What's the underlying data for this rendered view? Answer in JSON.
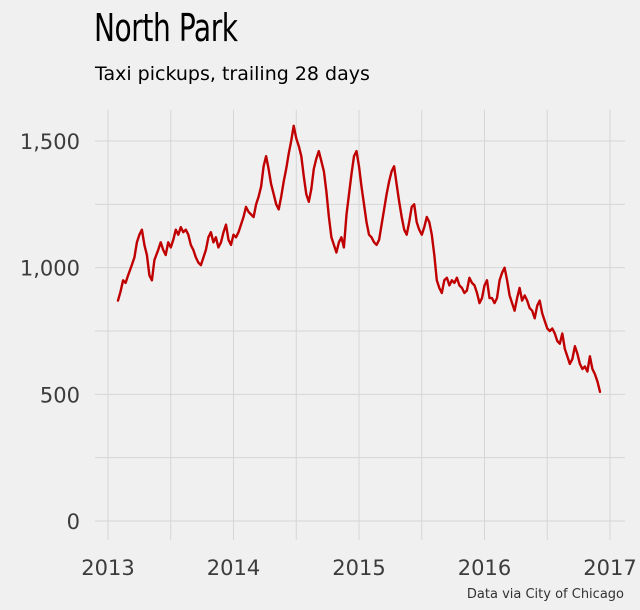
{
  "header": {
    "title": "North Park",
    "subtitle": "Taxi pickups, trailing 28 days"
  },
  "footer": {
    "source": "Data via City of Chicago"
  },
  "colors": {
    "background": "#f0f0f0",
    "grid": "#d6d6d6",
    "line": "#c00000"
  },
  "chart_data": {
    "type": "line",
    "title": "North Park",
    "subtitle": "Taxi pickups, trailing 28 days",
    "xlabel": "",
    "ylabel": "",
    "xlim": [
      2013.0,
      2017.0
    ],
    "ylim": [
      0,
      1600
    ],
    "x_ticks": [
      2013,
      2014,
      2015,
      2016,
      2017
    ],
    "x_tick_labels": [
      "2013",
      "2014",
      "2015",
      "2016",
      "2017"
    ],
    "y_ticks": [
      0,
      500,
      1000,
      1500
    ],
    "y_tick_labels": [
      "0",
      "500",
      "1,000",
      "1,500"
    ],
    "grid": true,
    "legend": "none",
    "series": [
      {
        "x": [
          2013.08,
          2013.1,
          2013.12,
          2013.14,
          2013.16,
          2013.19,
          2013.21,
          2013.23,
          2013.25,
          2013.27,
          2013.29,
          2013.31,
          2013.33,
          2013.35,
          2013.37,
          2013.4,
          2013.42,
          2013.44,
          2013.46,
          2013.48,
          2013.5,
          2013.52,
          2013.54,
          2013.56,
          2013.58,
          2013.6,
          2013.62,
          2013.64,
          2013.66,
          2013.68,
          2013.7,
          2013.72,
          2013.74,
          2013.76,
          2013.78,
          2013.8,
          2013.82,
          2013.84,
          2013.86,
          2013.88,
          2013.9,
          2013.92,
          2013.94,
          2013.96,
          2013.98,
          2014.0,
          2014.02,
          2014.04,
          2014.06,
          2014.08,
          2014.1,
          2014.12,
          2014.14,
          2014.16,
          2014.18,
          2014.2,
          2014.22,
          2014.24,
          2014.26,
          2014.28,
          2014.3,
          2014.32,
          2014.34,
          2014.36,
          2014.38,
          2014.4,
          2014.42,
          2014.44,
          2014.46,
          2014.48,
          2014.5,
          2014.52,
          2014.54,
          2014.56,
          2014.58,
          2014.6,
          2014.62,
          2014.64,
          2014.66,
          2014.68,
          2014.7,
          2014.72,
          2014.74,
          2014.76,
          2014.78,
          2014.8,
          2014.82,
          2014.84,
          2014.86,
          2014.88,
          2014.9,
          2014.92,
          2014.94,
          2014.96,
          2014.98,
          2015.0,
          2015.02,
          2015.04,
          2015.06,
          2015.08,
          2015.1,
          2015.12,
          2015.14,
          2015.16,
          2015.18,
          2015.2,
          2015.22,
          2015.24,
          2015.26,
          2015.28,
          2015.3,
          2015.32,
          2015.34,
          2015.36,
          2015.38,
          2015.4,
          2015.42,
          2015.44,
          2015.46,
          2015.48,
          2015.5,
          2015.52,
          2015.54,
          2015.56,
          2015.58,
          2015.6,
          2015.62,
          2015.64,
          2015.66,
          2015.68,
          2015.7,
          2015.72,
          2015.74,
          2015.76,
          2015.78,
          2015.8,
          2015.82,
          2015.84,
          2015.86,
          2015.88,
          2015.9,
          2015.92,
          2015.94,
          2015.96,
          2015.98,
          2016.0,
          2016.02,
          2016.04,
          2016.06,
          2016.08,
          2016.1,
          2016.12,
          2016.14,
          2016.16,
          2016.18,
          2016.2,
          2016.22,
          2016.24,
          2016.26,
          2016.28,
          2016.3,
          2016.32,
          2016.34,
          2016.36,
          2016.38,
          2016.4,
          2016.42,
          2016.44,
          2016.46,
          2016.48,
          2016.5,
          2016.52,
          2016.54,
          2016.56,
          2016.58,
          2016.6,
          2016.62,
          2016.64,
          2016.66,
          2016.68,
          2016.7,
          2016.72,
          2016.74,
          2016.76,
          2016.78,
          2016.8,
          2016.82,
          2016.84,
          2016.86,
          2016.88,
          2016.9,
          2016.92
        ],
        "y": [
          870,
          905,
          950,
          940,
          970,
          1010,
          1040,
          1100,
          1130,
          1150,
          1090,
          1050,
          970,
          950,
          1030,
          1070,
          1100,
          1070,
          1050,
          1100,
          1080,
          1110,
          1150,
          1130,
          1160,
          1140,
          1150,
          1130,
          1090,
          1070,
          1040,
          1020,
          1010,
          1040,
          1070,
          1120,
          1140,
          1100,
          1120,
          1080,
          1100,
          1140,
          1170,
          1110,
          1090,
          1130,
          1120,
          1140,
          1170,
          1200,
          1240,
          1220,
          1210,
          1200,
          1250,
          1280,
          1320,
          1400,
          1440,
          1390,
          1330,
          1290,
          1250,
          1230,
          1280,
          1340,
          1390,
          1450,
          1500,
          1560,
          1510,
          1480,
          1440,
          1360,
          1290,
          1260,
          1310,
          1390,
          1430,
          1460,
          1420,
          1380,
          1300,
          1200,
          1120,
          1090,
          1060,
          1100,
          1120,
          1080,
          1210,
          1290,
          1370,
          1440,
          1460,
          1400,
          1320,
          1250,
          1180,
          1130,
          1120,
          1100,
          1090,
          1110,
          1170,
          1230,
          1290,
          1340,
          1380,
          1400,
          1330,
          1260,
          1200,
          1150,
          1130,
          1180,
          1240,
          1250,
          1180,
          1150,
          1130,
          1160,
          1200,
          1180,
          1130,
          1050,
          950,
          920,
          900,
          950,
          960,
          930,
          950,
          940,
          960,
          930,
          920,
          900,
          910,
          960,
          940,
          930,
          900,
          860,
          880,
          930,
          950,
          880,
          880,
          860,
          880,
          950,
          980,
          1000,
          950,
          890,
          860,
          830,
          880,
          920,
          870,
          890,
          870,
          840,
          830,
          800,
          850,
          870,
          820,
          790,
          760,
          750,
          760,
          740,
          710,
          700,
          740,
          680,
          650,
          620,
          640,
          690,
          660,
          620,
          600,
          610,
          590,
          650,
          600,
          580,
          550,
          510
        ]
      }
    ]
  }
}
